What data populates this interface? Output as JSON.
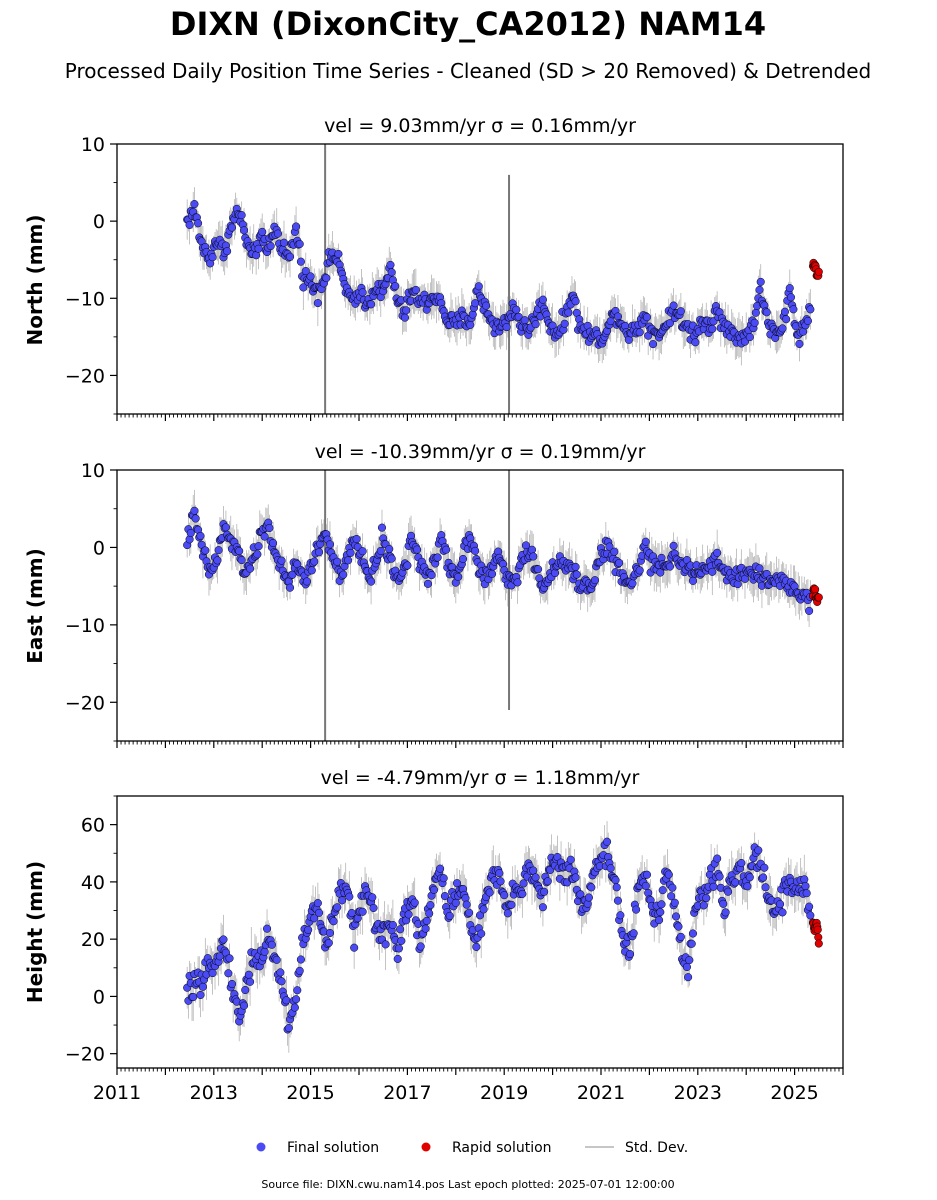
{
  "title": "DIXN (DixonCity_CA2012) NAM14",
  "subtitle": "Processed Daily Position Time Series - Cleaned (SD > 20 Removed) & Detrended",
  "colors": {
    "final": "#4b4bf5",
    "rapid": "#e00000",
    "stddev": "#b4b4b4",
    "edge": "#000000"
  },
  "legend": {
    "final_label": "Final solution",
    "rapid_label": "Rapid solution",
    "std_label": "Std. Dev.",
    "placement": "bottom-center"
  },
  "footer": "Source file: DIXN.cwu.nam14.pos  Last epoch plotted: 2025-07-01 12:00:00",
  "chart_data": [
    {
      "type": "scatter",
      "title": "vel = 9.03mm/yr   σ = 0.16mm/yr",
      "xlabel": "",
      "ylabel": "North (mm)",
      "xlim": [
        2011,
        2026
      ],
      "ylim": [
        -25,
        10
      ],
      "yticks": [
        10,
        0,
        -10,
        -20
      ],
      "xticks": [
        "2011",
        "2013",
        "2015",
        "2017",
        "2019",
        "2021",
        "2023",
        "2025"
      ],
      "xtick_labels_shown": false,
      "final_series": {
        "name": "Final solution",
        "x": [
          2012.45,
          2012.6,
          2012.75,
          2012.9,
          2013.05,
          2013.2,
          2013.35,
          2013.5,
          2013.65,
          2013.8,
          2013.95,
          2014.1,
          2014.25,
          2014.4,
          2014.55,
          2014.7,
          2014.85,
          2015.0,
          2015.15,
          2015.3,
          2015.45,
          2015.6,
          2015.75,
          2015.9,
          2016.05,
          2016.2,
          2016.35,
          2016.5,
          2016.65,
          2016.8,
          2016.95,
          2017.1,
          2017.25,
          2017.4,
          2017.55,
          2017.7,
          2017.85,
          2018.0,
          2018.15,
          2018.3,
          2018.45,
          2018.6,
          2018.75,
          2018.9,
          2019.05,
          2019.2,
          2019.35,
          2019.5,
          2019.65,
          2019.8,
          2019.95,
          2020.1,
          2020.25,
          2020.4,
          2020.55,
          2020.7,
          2020.85,
          2021.0,
          2021.15,
          2021.3,
          2021.45,
          2021.6,
          2021.75,
          2021.9,
          2022.05,
          2022.2,
          2022.35,
          2022.5,
          2022.65,
          2022.8,
          2022.95,
          2023.1,
          2023.25,
          2023.4,
          2023.55,
          2023.7,
          2023.85,
          2024.0,
          2024.15,
          2024.3,
          2024.45,
          2024.6,
          2024.75,
          2024.9,
          2025.05,
          2025.2,
          2025.35
        ],
        "y": [
          0,
          1.5,
          -3,
          -5,
          -2.5,
          -4,
          -1,
          1.5,
          -2,
          -5,
          -2,
          -4,
          -1,
          -3,
          -5,
          -1,
          -7,
          -8,
          -9,
          -7,
          -4,
          -6,
          -9,
          -11,
          -9,
          -11,
          -8,
          -9.5,
          -6,
          -10.5,
          -12,
          -9,
          -10.5,
          -10.5,
          -9.5,
          -11,
          -13,
          -13.5,
          -12.5,
          -13,
          -9,
          -11,
          -13,
          -14,
          -13,
          -11,
          -13.5,
          -14,
          -12.5,
          -10.5,
          -13.5,
          -14.5,
          -13,
          -9,
          -13.5,
          -14.5,
          -15,
          -15,
          -14,
          -11.5,
          -13.5,
          -14.5,
          -14,
          -12,
          -14.5,
          -14.5,
          -13.5,
          -11,
          -13,
          -14,
          -14.5,
          -13,
          -13.5,
          -11,
          -14,
          -14.5,
          -15,
          -15,
          -13,
          -9,
          -13,
          -15,
          -14,
          -9,
          -14.5,
          -14,
          -10.5
        ]
      },
      "rapid_series": {
        "name": "Rapid solution",
        "x": [
          2025.38,
          2025.42,
          2025.46,
          2025.5
        ],
        "y": [
          -6,
          -5.5,
          -7,
          -6.5
        ]
      },
      "std_dev": {
        "name": "Std. Dev.",
        "value_mm": 2.0,
        "spikes": [
          {
            "x": 2015.3,
            "low": -25,
            "high": 10
          },
          {
            "x": 2019.1,
            "low": -25,
            "high": 6
          }
        ]
      }
    },
    {
      "type": "scatter",
      "title": "vel = -10.39mm/yr   σ = 0.19mm/yr",
      "xlabel": "",
      "ylabel": "East (mm)",
      "xlim": [
        2011,
        2026
      ],
      "ylim": [
        -25,
        10
      ],
      "yticks": [
        10,
        0,
        -10,
        -20
      ],
      "xticks": [
        "2011",
        "2013",
        "2015",
        "2017",
        "2019",
        "2021",
        "2023",
        "2025"
      ],
      "xtick_labels_shown": false,
      "final_series": {
        "name": "Final solution",
        "x": [
          2012.45,
          2012.6,
          2012.75,
          2012.9,
          2013.05,
          2013.2,
          2013.35,
          2013.5,
          2013.65,
          2013.8,
          2013.95,
          2014.1,
          2014.25,
          2014.4,
          2014.55,
          2014.7,
          2014.85,
          2015.0,
          2015.15,
          2015.3,
          2015.45,
          2015.6,
          2015.75,
          2015.9,
          2016.05,
          2016.2,
          2016.35,
          2016.5,
          2016.65,
          2016.8,
          2016.95,
          2017.1,
          2017.25,
          2017.4,
          2017.55,
          2017.7,
          2017.85,
          2018.0,
          2018.15,
          2018.3,
          2018.45,
          2018.6,
          2018.75,
          2018.9,
          2019.05,
          2019.2,
          2019.35,
          2019.5,
          2019.65,
          2019.8,
          2019.95,
          2020.1,
          2020.25,
          2020.4,
          2020.55,
          2020.7,
          2020.85,
          2021.0,
          2021.15,
          2021.3,
          2021.45,
          2021.6,
          2021.75,
          2021.9,
          2022.05,
          2022.2,
          2022.35,
          2022.5,
          2022.65,
          2022.8,
          2022.95,
          2023.1,
          2023.25,
          2023.4,
          2023.55,
          2023.7,
          2023.85,
          2024.0,
          2024.15,
          2024.3,
          2024.45,
          2024.6,
          2024.75,
          2024.9,
          2025.05,
          2025.2,
          2025.35
        ],
        "y": [
          1,
          4,
          0,
          -3,
          -2,
          2.5,
          1,
          -1,
          -3,
          -2,
          1,
          3,
          0,
          -3,
          -5,
          -2,
          -4,
          -3,
          0,
          2,
          -1,
          -4,
          -2,
          1,
          -1,
          -4,
          -2,
          1.5,
          -2,
          -4,
          -2.5,
          1.5,
          -2,
          -4,
          -2.5,
          1.5,
          -2,
          -4,
          -1,
          2,
          -2,
          -4,
          -3,
          -1,
          -4,
          -4.5,
          -2,
          0,
          -3,
          -4.5,
          -4,
          -2,
          -2.5,
          -3,
          -4.5,
          -5,
          -4,
          -1,
          0,
          -2,
          -4,
          -5,
          -3,
          0,
          -2,
          -3,
          -2.5,
          0,
          -2,
          -3,
          -3.5,
          -3,
          -2.5,
          -2,
          -3,
          -4,
          -3.5,
          -3,
          -3.5,
          -4,
          -4,
          -4.5,
          -4,
          -5,
          -6,
          -6.5,
          -7
        ]
      },
      "rapid_series": {
        "name": "Rapid solution",
        "x": [
          2025.38,
          2025.42,
          2025.46,
          2025.5
        ],
        "y": [
          -6,
          -5.5,
          -7,
          -6
        ]
      },
      "std_dev": {
        "name": "Std. Dev.",
        "value_mm": 2.0,
        "spikes": [
          {
            "x": 2015.3,
            "low": -25,
            "high": 10
          },
          {
            "x": 2019.1,
            "low": -21,
            "high": 10
          }
        ]
      }
    },
    {
      "type": "scatter",
      "title": "vel = -4.79mm/yr   σ = 1.18mm/yr",
      "xlabel": "",
      "ylabel": "Height (mm)",
      "xlim": [
        2011,
        2026
      ],
      "ylim": [
        -25,
        70
      ],
      "yticks": [
        60,
        40,
        20,
        0,
        -20
      ],
      "xticks": [
        "2011",
        "2013",
        "2015",
        "2017",
        "2019",
        "2021",
        "2023",
        "2025"
      ],
      "xtick_labels_shown": true,
      "final_series": {
        "name": "Final solution",
        "x": [
          2012.45,
          2012.6,
          2012.75,
          2012.9,
          2013.05,
          2013.2,
          2013.35,
          2013.5,
          2013.65,
          2013.8,
          2013.95,
          2014.1,
          2014.25,
          2014.4,
          2014.55,
          2014.7,
          2014.85,
          2015.0,
          2015.15,
          2015.3,
          2015.45,
          2015.6,
          2015.75,
          2015.9,
          2016.05,
          2016.2,
          2016.35,
          2016.5,
          2016.65,
          2016.8,
          2016.95,
          2017.1,
          2017.25,
          2017.4,
          2017.55,
          2017.7,
          2017.85,
          2018.0,
          2018.15,
          2018.3,
          2018.45,
          2018.6,
          2018.75,
          2018.9,
          2019.05,
          2019.2,
          2019.35,
          2019.5,
          2019.65,
          2019.8,
          2019.95,
          2020.1,
          2020.25,
          2020.4,
          2020.55,
          2020.7,
          2020.85,
          2021.0,
          2021.15,
          2021.3,
          2021.45,
          2021.6,
          2021.75,
          2021.9,
          2022.05,
          2022.2,
          2022.35,
          2022.5,
          2022.65,
          2022.8,
          2022.95,
          2023.1,
          2023.25,
          2023.4,
          2023.55,
          2023.7,
          2023.85,
          2024.0,
          2024.15,
          2024.3,
          2024.45,
          2024.6,
          2024.75,
          2024.9,
          2025.05,
          2025.2,
          2025.35
        ],
        "y": [
          0,
          5,
          2,
          10,
          15,
          18,
          8,
          -8,
          0,
          15,
          12,
          20,
          15,
          5,
          -10,
          0,
          20,
          28,
          30,
          18,
          25,
          35,
          40,
          22,
          30,
          38,
          25,
          20,
          28,
          15,
          30,
          35,
          20,
          25,
          40,
          42,
          30,
          35,
          38,
          25,
          20,
          32,
          42,
          40,
          30,
          35,
          38,
          45,
          42,
          35,
          45,
          48,
          40,
          45,
          35,
          30,
          45,
          48,
          50,
          40,
          20,
          15,
          35,
          42,
          30,
          28,
          45,
          35,
          15,
          10,
          30,
          35,
          40,
          45,
          30,
          40,
          45,
          38,
          50,
          48,
          35,
          30,
          35,
          40,
          38,
          40,
          25
        ]
      },
      "rapid_series": {
        "name": "Rapid solution",
        "x": [
          2025.38,
          2025.42,
          2025.46,
          2025.5
        ],
        "y": [
          25,
          22,
          27,
          18
        ]
      },
      "std_dev": {
        "name": "Std. Dev.",
        "value_mm": 6.0,
        "spikes": []
      }
    }
  ]
}
